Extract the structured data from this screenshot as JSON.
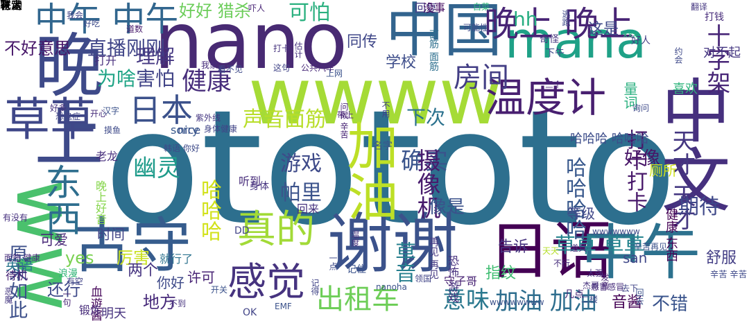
{
  "words": [
    {
      "text": "otototo",
      "color": "#2d6f8e",
      "vertical": false
    },
    {
      "text": "nano",
      "color": "#482a73",
      "vertical": false
    },
    {
      "text": "mana",
      "color": "#1fa187",
      "vertical": false
    },
    {
      "text": "wwww",
      "color": "#a5db36",
      "vertical": false
    },
    {
      "text": "ww",
      "color": "#4ac16d",
      "vertical": true
    },
    {
      "text": "晚上",
      "color": "#3e4a89",
      "vertical": true
    },
    {
      "text": "中国",
      "color": "#32648e",
      "vertical": false
    },
    {
      "text": "中文",
      "color": "#46307e",
      "vertical": true
    },
    {
      "text": "谢谢",
      "color": "#3b528b",
      "vertical": false
    },
    {
      "text": "日语",
      "color": "#440154",
      "vertical": false
    },
    {
      "text": "中午",
      "color": "#2c718e",
      "vertical": false
    },
    {
      "text": "古守",
      "color": "#365c8d",
      "vertical": false
    },
    {
      "text": "加油",
      "color": "#bddf26",
      "vertical": true
    },
    {
      "text": "草草",
      "color": "#3f4788",
      "vertical": false
    },
    {
      "text": "真的",
      "color": "#a2da37",
      "vertical": false
    },
    {
      "text": "感觉",
      "color": "#46337f",
      "vertical": false
    },
    {
      "text": "温度计",
      "color": "#481f70",
      "vertical": false
    },
    {
      "text": "东西",
      "color": "#2e6e8e",
      "vertical": true
    },
    {
      "text": "中午 中午",
      "color": "#31668e",
      "vertical": false
    },
    {
      "text": "晚上 晚上",
      "color": "#482475",
      "vertical": false
    },
    {
      "text": "日本",
      "color": "#3b518b",
      "vertical": false
    },
    {
      "text": "房间",
      "color": "#433e85",
      "vertical": false
    },
    {
      "text": "出租车",
      "color": "#6ece58",
      "vertical": false
    },
    {
      "text": "意味",
      "color": "#2a788e",
      "vertical": false
    },
    {
      "text": "加油 加油",
      "color": "#2e6e8e",
      "vertical": false
    },
    {
      "text": "确实",
      "color": "#3a548c",
      "vertical": false
    },
    {
      "text": "健康",
      "color": "#472d7b",
      "vertical": false
    },
    {
      "text": "声音面筋",
      "color": "#b8de29",
      "vertical": false
    },
    {
      "text": "幽灵",
      "color": "#1e9b8a",
      "vertical": false
    },
    {
      "text": "游戏",
      "color": "#3e4a89",
      "vertical": false
    },
    {
      "text": "帕里",
      "color": "#3b528b",
      "vertical": false
    },
    {
      "text": "摄像机",
      "color": "#481b6d",
      "vertical": true
    },
    {
      "text": "草音",
      "color": "#277f8e",
      "vertical": true
    },
    {
      "text": "草草 草草",
      "color": "#25848e",
      "vertical": false
    },
    {
      "text": "十字架",
      "color": "#482677",
      "vertical": true
    },
    {
      "text": "打卡打卡",
      "color": "#48186a",
      "vertical": true
    },
    {
      "text": "天才 天才",
      "color": "#453781",
      "vertical": true
    },
    {
      "text": "期待",
      "color": "#3f4889",
      "vertical": false
    },
    {
      "text": "哈哈哈",
      "color": "#d2e21b",
      "vertical": true
    },
    {
      "text": "哈哈哈哈",
      "color": "#38588c",
      "vertical": true
    },
    {
      "text": "下次",
      "color": "#2c728e",
      "vertical": false
    },
    {
      "text": "直播刚刚",
      "color": "#404588",
      "vertical": false
    },
    {
      "text": "害怕",
      "color": "#414487",
      "vertical": false
    },
    {
      "text": "理解",
      "color": "#453882",
      "vertical": false
    },
    {
      "text": "为啥",
      "color": "#20a486",
      "vertical": false
    },
    {
      "text": "hh",
      "color": "#26ad81",
      "vertical": false
    },
    {
      "text": "可怕",
      "color": "#2ab07f",
      "vertical": false
    },
    {
      "text": "好好 猎杀",
      "color": "#6ccd5a",
      "vertical": false
    },
    {
      "text": "不好意思",
      "color": "#48186a",
      "vertical": false
    },
    {
      "text": "原来如此",
      "color": "#3c4f8a",
      "vertical": true
    },
    {
      "text": "血遊酱",
      "color": "#46075a",
      "vertical": true
    },
    {
      "text": "厉害",
      "color": "#c8e020",
      "vertical": false
    },
    {
      "text": "告诉",
      "color": "#46327e",
      "vertical": false
    },
    {
      "text": "还行",
      "color": "#3e4989",
      "vertical": false
    },
    {
      "text": "地方",
      "color": "#472a7a",
      "vertical": false
    },
    {
      "text": "音酱",
      "color": "#440154",
      "vertical": false
    },
    {
      "text": "不错",
      "color": "#3a548c",
      "vertical": false
    },
    {
      "text": "好像",
      "color": "#481467",
      "vertical": false
    },
    {
      "text": "像是",
      "color": "#3b518b",
      "vertical": false
    },
    {
      "text": "yes",
      "color": "#7ad151",
      "vertical": false
    },
    {
      "text": "两个",
      "color": "#463480",
      "vertical": false
    },
    {
      "text": "指纹",
      "color": "#40bd72",
      "vertical": false
    },
    {
      "text": "同传",
      "color": "#3f4788",
      "vertical": false
    },
    {
      "text": "学校",
      "color": "#3d4d8a",
      "vertical": false
    },
    {
      "text": "回复",
      "color": "#443983",
      "vertical": false
    },
    {
      "text": "没事",
      "color": "#471063",
      "vertical": false
    },
    {
      "text": "这是",
      "color": "#3e4989",
      "vertical": false
    },
    {
      "text": "量词",
      "color": "#2ab07f",
      "vertical": true
    },
    {
      "text": "喜欢",
      "color": "#2fb47c",
      "vertical": false
    },
    {
      "text": "对不起",
      "color": "#453781",
      "vertical": false
    },
    {
      "text": "等级",
      "color": "#3f4788",
      "vertical": false
    },
    {
      "text": "厕所",
      "color": "#d0e11c",
      "vertical": false
    },
    {
      "text": "健康 东西",
      "color": "#440154",
      "vertical": true
    },
    {
      "text": "san",
      "color": "#3f4788",
      "vertical": false
    },
    {
      "text": "舒服",
      "color": "#433e85",
      "vertical": false
    },
    {
      "text": "辛苦 辛苦",
      "color": "#3e4989",
      "vertical": false
    },
    {
      "text": "可爱",
      "color": "#482878",
      "vertical": false
    },
    {
      "text": "许可",
      "color": "#482475",
      "vertical": false
    },
    {
      "text": "你好",
      "color": "#3e4a89",
      "vertical": false
    },
    {
      "text": "明天",
      "color": "#46327e",
      "vertical": false
    },
    {
      "text": "英语",
      "color": "#2a778e",
      "vertical": false
    },
    {
      "text": "锻炼",
      "color": "#472c7a",
      "vertical": false
    },
    {
      "text": "待机",
      "color": "#482374",
      "vertical": false
    },
    {
      "text": "浪漫",
      "color": "#34b679",
      "vertical": false
    },
    {
      "text": "打开",
      "color": "#472e7c",
      "vertical": false
    },
    {
      "text": "sorry",
      "color": "#38588c",
      "vertical": false
    },
    {
      "text": "nice",
      "color": "#3b528b",
      "vertical": false
    },
    {
      "text": "老龙",
      "color": "#472f7d",
      "vertical": false
    },
    {
      "text": "吓人",
      "color": "#482475",
      "vertical": false
    },
    {
      "text": "听到",
      "color": "#472c7a",
      "vertical": false
    },
    {
      "text": "身体",
      "color": "#45337f",
      "vertical": false
    },
    {
      "text": "记住",
      "color": "#3b528b",
      "vertical": false
    },
    {
      "text": "再见 再见",
      "color": "#453882",
      "vertical": true
    },
    {
      "text": "晚上好音",
      "color": "#85d54a",
      "vertical": true
    },
    {
      "text": "时间",
      "color": "#414487",
      "vertical": false
    },
    {
      "text": "就行了",
      "color": "#2c728e",
      "vertical": false
    },
    {
      "text": "恐怖 游戏",
      "color": "#46307e",
      "vertical": true
    },
    {
      "text": "哈哈哈 哈哈哈",
      "color": "#3d4d8a",
      "vertical": false
    },
    {
      "text": "守子哥",
      "color": "#482374",
      "vertical": false
    },
    {
      "text": "名字",
      "color": "#3b528b",
      "vertical": false
    },
    {
      "text": "面筋 面筋",
      "color": "#2d6f8e",
      "vertical": true
    },
    {
      "text": "下午",
      "color": "#3e4a89",
      "vertical": false
    },
    {
      "text": "奇怪",
      "color": "#46337f",
      "vertical": false
    },
    {
      "text": "好人",
      "color": "#433e85",
      "vertical": false
    },
    {
      "text": "约会",
      "color": "#3e4989",
      "vertical": true
    },
    {
      "text": "逃跑",
      "color": "#3e4a89",
      "vertical": true
    },
    {
      "text": "回去",
      "color": "#3b528b",
      "vertical": true
    },
    {
      "text": "有空",
      "color": "#414487",
      "vertical": false
    },
    {
      "text": "一句",
      "color": "#482475",
      "vertical": true
    },
    {
      "text": "恶魔",
      "color": "#453781",
      "vertical": true
    },
    {
      "text": "面筋 健康",
      "color": "#472d7b",
      "vertical": false
    },
    {
      "text": "有没有",
      "color": "#46307e",
      "vertical": false
    },
    {
      "text": "好吃",
      "color": "#3e4a89",
      "vertical": false
    },
    {
      "text": "我会",
      "color": "#414487",
      "vertical": false
    },
    {
      "text": "道数",
      "color": "#481b6d",
      "vertical": false
    },
    {
      "text": "打钱",
      "color": "#472c7a",
      "vertical": false
    },
    {
      "text": "翻译",
      "color": "#453781",
      "vertical": false
    },
    {
      "text": "三个",
      "color": "#482576",
      "vertical": false
    },
    {
      "text": "韩语 你好",
      "color": "#3e4a89",
      "vertical": false
    },
    {
      "text": "公共汽车",
      "color": "#482878",
      "vertical": false
    },
    {
      "text": "带上",
      "color": "#482475",
      "vertical": false
    },
    {
      "text": "回来",
      "color": "#46327e",
      "vertical": false
    },
    {
      "text": "一点",
      "color": "#3e4a89",
      "vertical": true
    },
    {
      "text": "DD",
      "color": "#414487",
      "vertical": false
    },
    {
      "text": "OK",
      "color": "#414487",
      "vertical": false
    },
    {
      "text": "EMF",
      "color": "#3b528b",
      "vertical": false
    },
    {
      "text": "杰哥",
      "color": "#46327e",
      "vertical": false
    },
    {
      "text": "不行",
      "color": "#472d7b",
      "vertical": false
    },
    {
      "text": "wwwwwww",
      "color": "#3e4a89",
      "vertical": false
    },
    {
      "text": "天天",
      "color": "#b5de2b",
      "vertical": false
    },
    {
      "text": "辛苦再见",
      "color": "#3b528b",
      "vertical": false
    },
    {
      "text": "感冒感冒",
      "color": "#472d7b",
      "vertical": false
    },
    {
      "text": "几点",
      "color": "#482475",
      "vertical": false
    },
    {
      "text": "白菜",
      "color": "#2fb47c",
      "vertical": false
    },
    {
      "text": "可能性",
      "color": "#3e4a89",
      "vertical": false
    },
    {
      "text": "估计",
      "color": "#46337f",
      "vertical": true
    },
    {
      "text": "上网",
      "color": "#3b528b",
      "vertical": false
    },
    {
      "text": "打卡",
      "color": "#46327e",
      "vertical": false
    },
    {
      "text": "这句",
      "color": "#414487",
      "vertical": false
    },
    {
      "text": "我家",
      "color": "#472d7b",
      "vertical": false
    },
    {
      "text": "看不见",
      "color": "#3e4a89",
      "vertical": false
    },
    {
      "text": "开关",
      "color": "#3b528b",
      "vertical": false
    },
    {
      "text": "温度",
      "color": "#46337f",
      "vertical": true
    },
    {
      "text": "不用",
      "color": "#414487",
      "vertical": true
    },
    {
      "text": "问候 辛苦",
      "color": "#482475",
      "vertical": true
    },
    {
      "text": "紫外线",
      "color": "#453781",
      "vertical": false
    },
    {
      "text": "身体健康",
      "color": "#414487",
      "vertical": false
    },
    {
      "text": "摸鱼",
      "color": "#3e4a89",
      "vertical": false
    },
    {
      "text": "开心",
      "color": "#472d7b",
      "vertical": false
    },
    {
      "text": "汉字",
      "color": "#3b528b",
      "vertical": false
    },
    {
      "text": "好多",
      "color": "#46327e",
      "vertical": false
    },
    {
      "text": "恐鬼症",
      "color": "#414487",
      "vertical": false
    },
    {
      "text": "二楼",
      "color": "#3e4a89",
      "vertical": false
    },
    {
      "text": "道具",
      "color": "#46337f",
      "vertical": false
    },
    {
      "text": "记得",
      "color": "#414487",
      "vertical": true
    },
    {
      "text": "nanoha",
      "color": "#3b528b",
      "vertical": false
    },
    {
      "text": "领国",
      "color": "#414487",
      "vertical": false
    },
    {
      "text": "xxx",
      "color": "#2ab07f",
      "vertical": false
    },
    {
      "text": "wwwwwwww",
      "color": "#3b528b",
      "vertical": false
    },
    {
      "text": "询问",
      "color": "#3e4a89",
      "vertical": false
    },
    {
      "text": "太强",
      "color": "#46327e",
      "vertical": false
    },
    {
      "text": "发音",
      "color": "#482475",
      "vertical": true
    },
    {
      "text": "去下",
      "color": "#414487",
      "vertical": false
    },
    {
      "text": "不到",
      "color": "#46327e",
      "vertical": false
    },
    {
      "text": "有人",
      "color": "#3b528b",
      "vertical": false
    },
    {
      "text": "花音",
      "color": "#414487",
      "vertical": false
    },
    {
      "text": "肯定",
      "color": "#3e4a89",
      "vertical": false
    },
    {
      "text": "联动",
      "color": "#bddf26",
      "vertical": false
    }
  ]
}
